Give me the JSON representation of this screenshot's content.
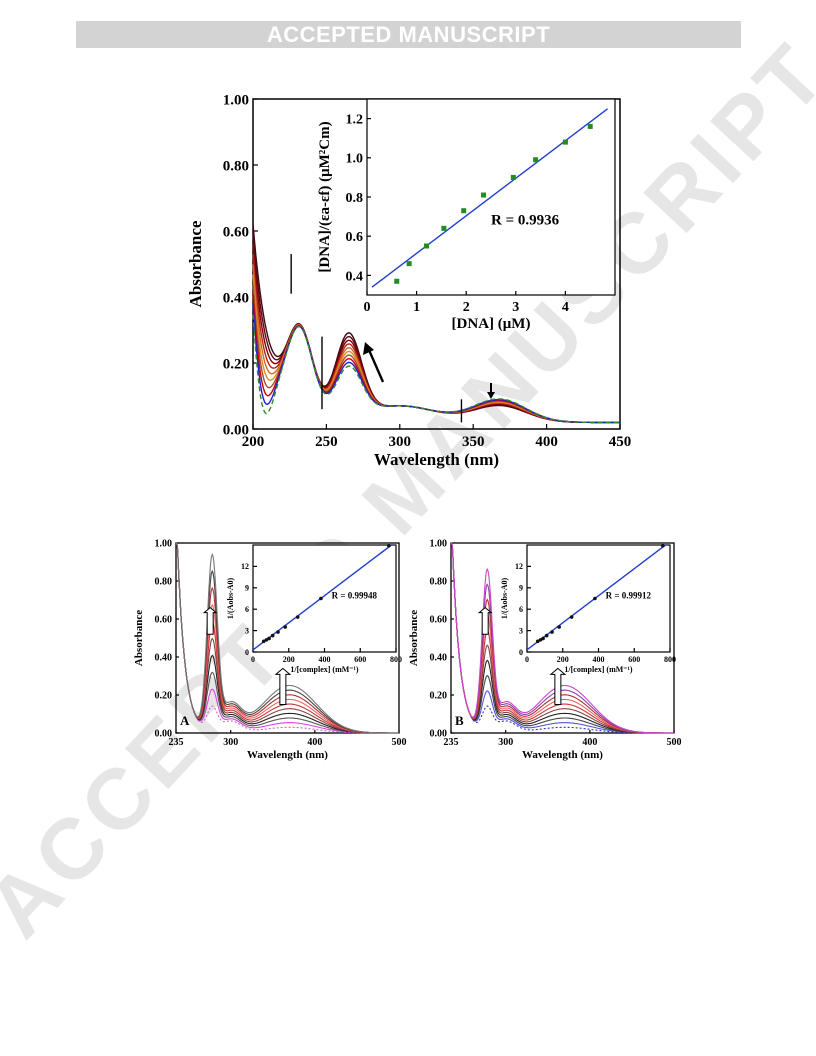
{
  "header": {
    "banner_text": "ACCEPTED MANUSCRIPT"
  },
  "watermark": {
    "text": "ACCEPTED MANUSCRIPT"
  },
  "chart_data": [
    {
      "type": "line",
      "xlabel": "Wavelength (nm)",
      "ylabel": "Absorbance",
      "xlim": [
        200,
        450
      ],
      "ylim": [
        0,
        1.0
      ],
      "xticks": [
        "200",
        "250",
        "300",
        "350",
        "400",
        "450"
      ],
      "yticks": [
        "0.00",
        "0.20",
        "0.40",
        "0.60",
        "0.80",
        "1.00"
      ],
      "series_colors": [
        "#3a0a10",
        "#5a0a18",
        "#8b0000",
        "#b22222",
        "#d2691e",
        "#e08a2c",
        "#a0522d",
        "#cc0000",
        "#1f1fd0",
        "#2e8b2e"
      ],
      "annotations": [
        "arrow-up-near-270nm",
        "arrow-down-near-365nm",
        "isosbestic-markers-226-247-342nm"
      ],
      "inset": {
        "type": "scatter",
        "xlabel": "[DNA] (μM)",
        "ylabel": "[DNA]/(εa-εf) (μM²Cm)",
        "xlim": [
          0,
          5
        ],
        "ylim": [
          0.3,
          1.3
        ],
        "xticks": [
          "0",
          "1",
          "2",
          "3",
          "4"
        ],
        "yticks": [
          "0.4",
          "0.6",
          "0.8",
          "1.0",
          "1.2"
        ],
        "points": [
          [
            0.6,
            0.37
          ],
          [
            0.85,
            0.46
          ],
          [
            1.2,
            0.55
          ],
          [
            1.55,
            0.64
          ],
          [
            1.95,
            0.73
          ],
          [
            2.35,
            0.81
          ],
          [
            2.95,
            0.9
          ],
          [
            3.4,
            0.99
          ],
          [
            4.0,
            1.08
          ],
          [
            4.5,
            1.16
          ]
        ],
        "fit": [
          [
            0.1,
            0.34
          ],
          [
            4.85,
            1.25
          ]
        ],
        "point_color": "#228b22",
        "fit_color": "#1f3fd0",
        "annotation": "R = 0.9936"
      }
    },
    {
      "type": "line",
      "panel_label": "A",
      "xlabel": "Wavelength (nm)",
      "ylabel": "Absorbance",
      "xlim": [
        235,
        500
      ],
      "ylim": [
        0,
        1.0
      ],
      "xticks": [
        "235",
        "300",
        "400",
        "500"
      ],
      "yticks": [
        "0.00",
        "0.20",
        "0.40",
        "0.60",
        "0.80",
        "1.00"
      ],
      "series_colors": [
        "#cc66cc",
        "#dd44dd",
        "#555555",
        "#222222",
        "#884444",
        "#cc3333",
        "#ee6666",
        "#b03030",
        "#444444",
        "#777777"
      ],
      "inset": {
        "type": "scatter",
        "xlabel": "1/[complex] (mM⁻¹)",
        "ylabel": "1/(Aobs-A0)",
        "xlim": [
          0,
          800
        ],
        "ylim": [
          0,
          15
        ],
        "xticks": [
          "0",
          "200",
          "400",
          "600",
          "800"
        ],
        "yticks": [
          "0",
          "3",
          "6",
          "9",
          "12"
        ],
        "points": [
          [
            60,
            1.5
          ],
          [
            75,
            1.7
          ],
          [
            90,
            1.9
          ],
          [
            110,
            2.3
          ],
          [
            140,
            2.8
          ],
          [
            180,
            3.5
          ],
          [
            250,
            4.9
          ],
          [
            380,
            7.5
          ],
          [
            760,
            14.9
          ]
        ],
        "fit": [
          [
            0,
            0.3
          ],
          [
            780,
            15.1
          ]
        ],
        "annotation": "R = 0.99948"
      }
    },
    {
      "type": "line",
      "panel_label": "B",
      "xlabel": "Wavelength (nm)",
      "ylabel": "Absorbance",
      "xlim": [
        235,
        500
      ],
      "ylim": [
        0,
        1.0
      ],
      "xticks": [
        "235",
        "300",
        "400",
        "500"
      ],
      "yticks": [
        "0.00",
        "0.20",
        "0.40",
        "0.60",
        "0.80",
        "1.00"
      ],
      "series_colors": [
        "#3333cc",
        "#5555dd",
        "#444444",
        "#222222",
        "#884444",
        "#cc3333",
        "#ee6666",
        "#b03030",
        "#8844aa",
        "#cc44cc"
      ],
      "inset": {
        "type": "scatter",
        "xlabel": "1/[complex] (mM⁻¹)",
        "ylabel": "1/(Aobs-A0)",
        "xlim": [
          0,
          800
        ],
        "ylim": [
          0,
          15
        ],
        "xticks": [
          "0",
          "200",
          "400",
          "600",
          "800"
        ],
        "yticks": [
          "0",
          "3",
          "6",
          "9",
          "12"
        ],
        "points": [
          [
            60,
            1.5
          ],
          [
            75,
            1.7
          ],
          [
            90,
            1.9
          ],
          [
            110,
            2.3
          ],
          [
            140,
            2.8
          ],
          [
            180,
            3.5
          ],
          [
            250,
            4.9
          ],
          [
            380,
            7.5
          ],
          [
            760,
            14.9
          ]
        ],
        "fit": [
          [
            0,
            0.3
          ],
          [
            780,
            15.1
          ]
        ],
        "annotation": "R = 0.99912"
      }
    }
  ]
}
